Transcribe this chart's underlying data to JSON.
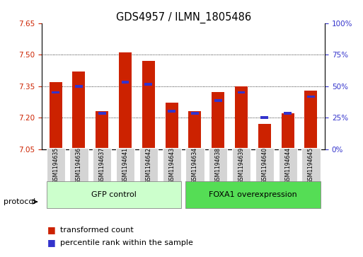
{
  "title": "GDS4957 / ILMN_1805486",
  "samples": [
    "GSM1194635",
    "GSM1194636",
    "GSM1194637",
    "GSM1194641",
    "GSM1194642",
    "GSM1194643",
    "GSM1194634",
    "GSM1194638",
    "GSM1194639",
    "GSM1194640",
    "GSM1194644",
    "GSM1194645"
  ],
  "red_values": [
    7.37,
    7.42,
    7.23,
    7.51,
    7.47,
    7.27,
    7.23,
    7.32,
    7.35,
    7.17,
    7.22,
    7.33
  ],
  "blue_values": [
    7.32,
    7.35,
    7.22,
    7.37,
    7.36,
    7.23,
    7.22,
    7.28,
    7.32,
    7.2,
    7.22,
    7.3
  ],
  "y_min": 7.05,
  "y_max": 7.65,
  "y_ticks": [
    7.05,
    7.2,
    7.35,
    7.5,
    7.65
  ],
  "right_y_ticks": [
    0,
    25,
    50,
    75,
    100
  ],
  "right_y_labels": [
    "0%",
    "25%",
    "50%",
    "75%",
    "100%"
  ],
  "gfp_count": 6,
  "group1_label": "GFP control",
  "group2_label": "FOXA1 overexpression",
  "protocol_label": "protocol",
  "legend_red": "transformed count",
  "legend_blue": "percentile rank within the sample",
  "bar_color": "#cc2200",
  "blue_color": "#3333cc",
  "gfp_color": "#ccffcc",
  "foxa1_color": "#55dd55",
  "tick_color_left": "#cc2200",
  "tick_color_right": "#3333cc",
  "bar_width": 0.55,
  "bar_base": 7.05,
  "grid_lines": [
    7.2,
    7.35,
    7.5
  ]
}
